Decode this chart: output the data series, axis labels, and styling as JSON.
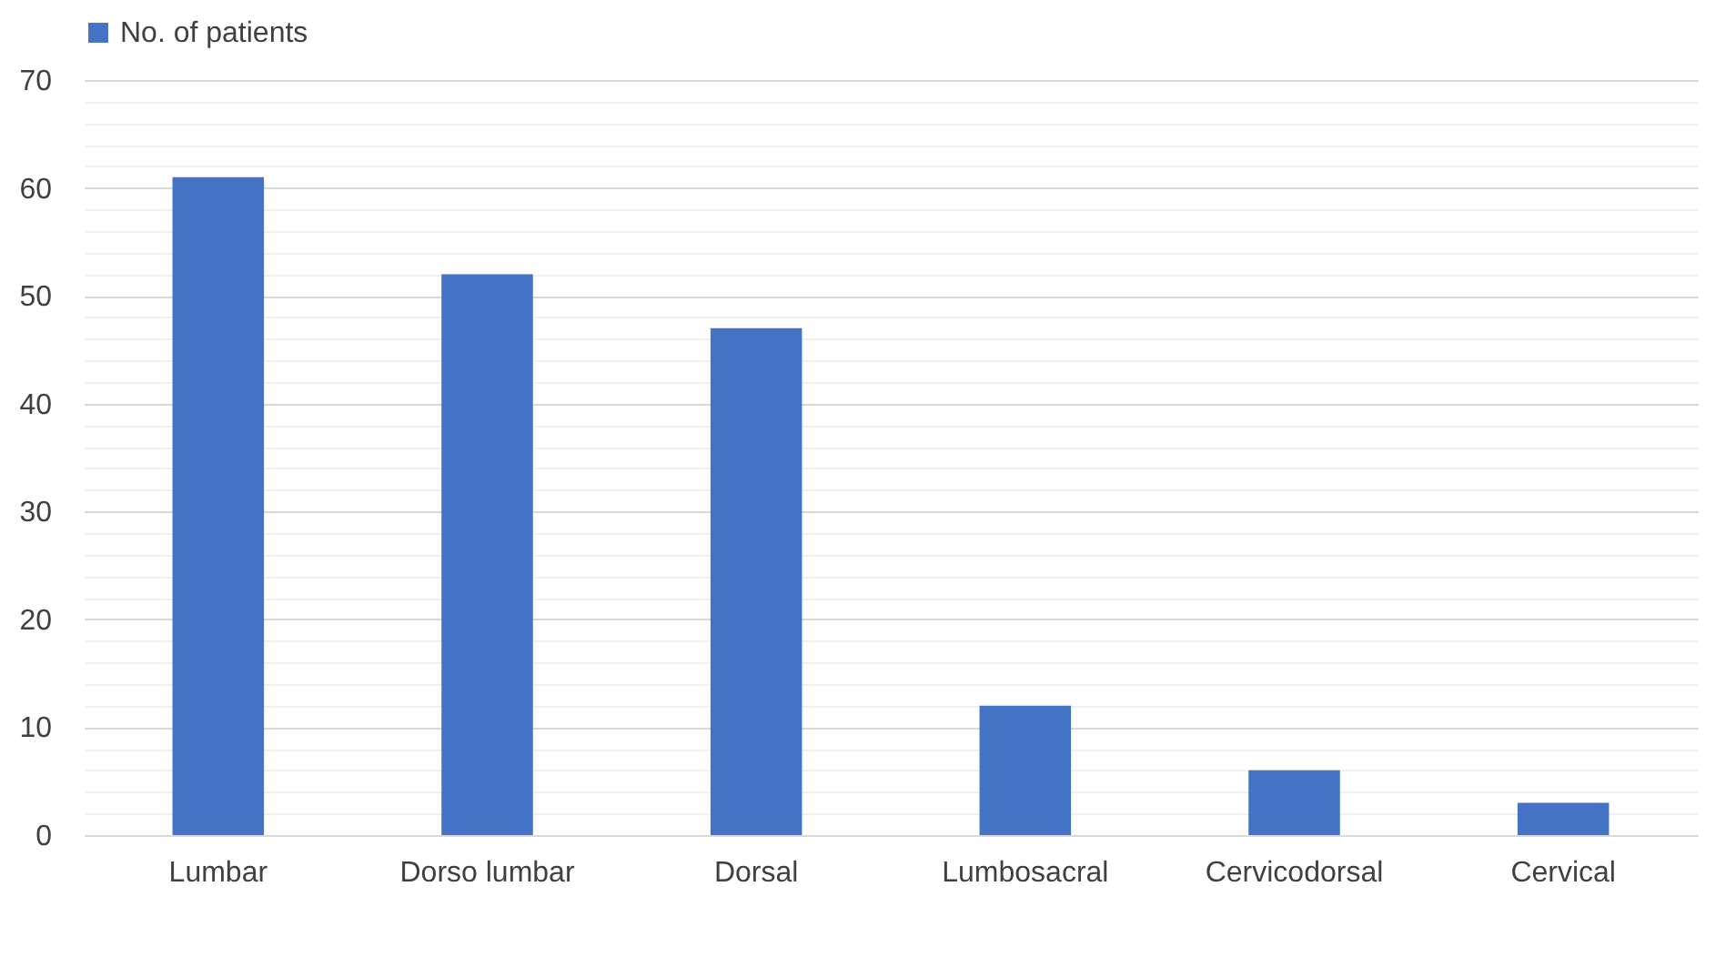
{
  "chart_data": {
    "type": "bar",
    "categories": [
      "Lumbar",
      "Dorso lumbar",
      "Dorsal",
      "Lumbosacral",
      "Cervicodorsal",
      "Cervical"
    ],
    "series": [
      {
        "name": "No. of patients",
        "color": "#4472c4",
        "values": [
          61,
          52,
          47,
          12,
          6,
          3
        ]
      }
    ],
    "ylim": [
      0,
      70
    ],
    "yticks": [
      0,
      {
        "value": 2,
        "label": null
      },
      {
        "value": 4,
        "label": null
      },
      {
        "value": 6,
        "label": null
      },
      {
        "value": 8,
        "label": null
      },
      10,
      {
        "value": 12,
        "label": null
      },
      {
        "value": 14,
        "label": null
      },
      {
        "value": 16,
        "label": null
      },
      {
        "value": 18,
        "label": null
      },
      20,
      {
        "value": 22,
        "label": null
      },
      {
        "value": 24,
        "label": null
      },
      {
        "value": 26,
        "label": null
      },
      {
        "value": 28,
        "label": null
      },
      30,
      {
        "value": 32,
        "label": null
      },
      {
        "value": 34,
        "label": null
      },
      {
        "value": 36,
        "label": null
      },
      {
        "value": 38,
        "label": null
      },
      40,
      {
        "value": 42,
        "label": null
      },
      {
        "value": 44,
        "label": null
      },
      {
        "value": 46,
        "label": null
      },
      {
        "value": 48,
        "label": null
      },
      50,
      {
        "value": 52,
        "label": null
      },
      {
        "value": 54,
        "label": null
      },
      {
        "value": 56,
        "label": null
      },
      {
        "value": 58,
        "label": null
      },
      60,
      {
        "value": 62,
        "label": null
      },
      {
        "value": 64,
        "label": null
      },
      {
        "value": 66,
        "label": null
      },
      {
        "value": 68,
        "label": null
      },
      70
    ],
    "grid": true,
    "legend": "top"
  }
}
